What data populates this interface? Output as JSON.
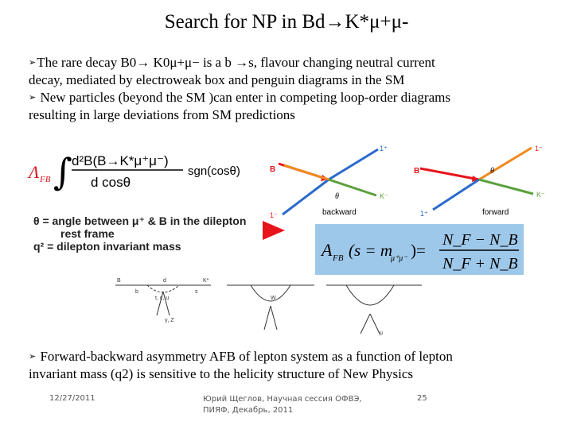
{
  "slide": {
    "title": "Search for NP in Bd→K*μ+μ-",
    "bullet1_line1": "The rare decay B0→ K0μ+μ− is a b →s, flavour changing neutral current",
    "bullet1_line2": "decay,  mediated by electroweak box and penguin diagrams in the SM",
    "bullet2_line1": "New particles (beyond the SM )can enter in competing loop-order diagrams",
    "bullet2_line2": "resulting  in large deviations from SM predictions",
    "bullet3_line1": "Forward-backward asymmetry AFB of lepton system as a function of lepton",
    "bullet3_line2": "invariant mass (q2) is sensitive to the helicity structure of New Physics",
    "bullet_marker": "➢"
  },
  "figure": {
    "afb_symbol": "Λ",
    "afb_sub": "FB",
    "eq_numerator": "d²B(B→K*μ⁺μ⁻)",
    "eq_denominator": "d cosθ",
    "eq_sgn": "sgn(cosθ)",
    "def_theta": "θ = angle between μ⁺ & B in the dilepton",
    "def_theta2": "rest frame",
    "def_q2": "q² = dilepton invariant mass",
    "label_backward": "backward",
    "label_forward": "forward",
    "label_B": "B",
    "label_K": "K⁻",
    "label_lplus": "1⁺",
    "label_lminus": "1⁻",
    "label_theta": "θ",
    "afb2_lhs": "A",
    "afb2_sub": "FB",
    "afb2_arg": "(s = m",
    "afb2_arg2": "μ⁺μ⁻",
    "afb2_arg3": ")=",
    "afb2_num": "N",
    "afb2_num_full": "N_F − N_B",
    "afb2_den_full": "N_F + N_B",
    "feyn_labels": [
      "B",
      "b",
      "s",
      "K*",
      "d",
      "t, c, u",
      "W",
      "γ, Z",
      "μ"
    ]
  },
  "footer": {
    "date": "12/27/2011",
    "center_line1": "Юрий Щеглов, Научная сессия ОФВЭ,",
    "center_line2": "ПИЯФ, Декабрь, 2011",
    "page": "25"
  }
}
